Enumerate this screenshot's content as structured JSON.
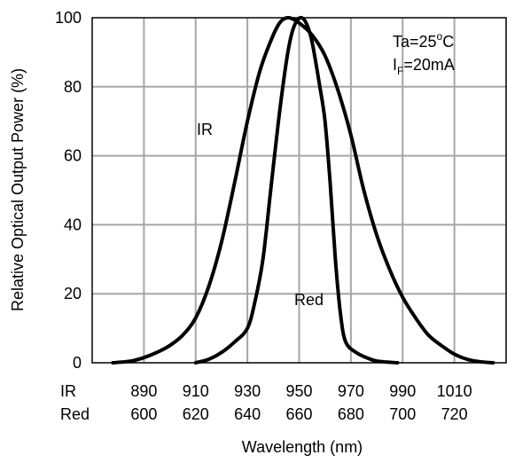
{
  "chart_data": {
    "type": "line",
    "ylabel": "Relative Optical Output Power  (%)",
    "xlabel": "Wavelength  (nm)",
    "ylim": [
      0,
      100
    ],
    "y_ticks": [
      "0",
      "20",
      "40",
      "60",
      "80",
      "100"
    ],
    "grid": true,
    "x_axis_rows": [
      {
        "label": "IR",
        "ticks": [
          "890",
          "910",
          "930",
          "950",
          "970",
          "990",
          "1010"
        ],
        "xlim": [
          870,
          1030
        ]
      },
      {
        "label": "Red",
        "ticks": [
          "600",
          "620",
          "640",
          "660",
          "680",
          "700",
          "720"
        ],
        "xlim": [
          580,
          740
        ]
      }
    ],
    "annotations": [
      {
        "id": "ta",
        "text": "Ta=25",
        "sup": "o",
        "suffix": "C"
      },
      {
        "id": "if",
        "text": "I",
        "sub": "F",
        "suffix": "=20mA"
      }
    ],
    "series": [
      {
        "name": "IR",
        "axis": "IR",
        "points": [
          [
            878,
            0
          ],
          [
            885,
            0.5
          ],
          [
            890,
            1.5
          ],
          [
            895,
            3
          ],
          [
            900,
            5
          ],
          [
            905,
            8
          ],
          [
            910,
            13
          ],
          [
            915,
            22
          ],
          [
            920,
            35
          ],
          [
            925,
            52
          ],
          [
            930,
            70
          ],
          [
            935,
            85
          ],
          [
            940,
            95
          ],
          [
            943,
            99
          ],
          [
            946,
            100
          ],
          [
            950,
            98.5
          ],
          [
            955,
            95
          ],
          [
            960,
            89
          ],
          [
            965,
            79
          ],
          [
            970,
            66
          ],
          [
            975,
            50
          ],
          [
            980,
            37
          ],
          [
            985,
            27
          ],
          [
            990,
            19
          ],
          [
            995,
            13
          ],
          [
            1000,
            8
          ],
          [
            1005,
            5
          ],
          [
            1010,
            2.5
          ],
          [
            1015,
            1
          ],
          [
            1020,
            0.3
          ],
          [
            1025,
            0
          ]
        ]
      },
      {
        "name": "Red",
        "axis": "Red",
        "points": [
          [
            620,
            0
          ],
          [
            625,
            1
          ],
          [
            630,
            3
          ],
          [
            635,
            6
          ],
          [
            640,
            10
          ],
          [
            643,
            18
          ],
          [
            646,
            30
          ],
          [
            649,
            50
          ],
          [
            652,
            70
          ],
          [
            655,
            87
          ],
          [
            657,
            95
          ],
          [
            659,
            99
          ],
          [
            661,
            100
          ],
          [
            663,
            98
          ],
          [
            665,
            93
          ],
          [
            668,
            80
          ],
          [
            670,
            70
          ],
          [
            672,
            52
          ],
          [
            674,
            30
          ],
          [
            676,
            14
          ],
          [
            678,
            6
          ],
          [
            682,
            3
          ],
          [
            686,
            1.5
          ],
          [
            690,
            0.5
          ],
          [
            698,
            0
          ]
        ]
      }
    ]
  }
}
